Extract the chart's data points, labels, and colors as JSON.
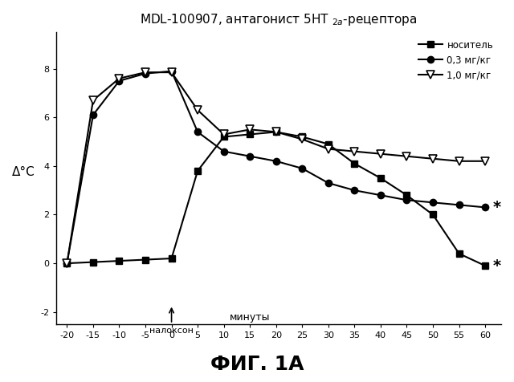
{
  "title": "MDL-100907, антагонист 5НТ $_{2a}$-рецептора",
  "ylabel": "Δ°С",
  "xlabel_minutes": "минуты",
  "xlabel_naloxon": "налоксон",
  "fig_label": "ФИГ. 1А",
  "xlim": [
    -22,
    63
  ],
  "ylim": [
    -2.5,
    9.5
  ],
  "xticks": [
    -20,
    -15,
    -10,
    -5,
    0,
    5,
    10,
    15,
    20,
    25,
    30,
    35,
    40,
    45,
    50,
    55,
    60
  ],
  "yticks": [
    -2,
    0,
    2,
    4,
    6,
    8
  ],
  "series": {
    "vehicle": {
      "label": "носитель",
      "color": "black",
      "marker": "s",
      "markersize": 6,
      "linewidth": 1.5,
      "x": [
        -20,
        -15,
        -10,
        -5,
        0,
        5,
        10,
        15,
        20,
        25,
        30,
        35,
        40,
        45,
        50,
        55,
        60
      ],
      "y": [
        0.0,
        0.05,
        0.1,
        0.15,
        0.2,
        3.8,
        5.2,
        5.3,
        5.4,
        5.2,
        4.9,
        4.1,
        3.5,
        2.8,
        2.0,
        0.4,
        -0.1
      ]
    },
    "dose_03": {
      "label": "0,3 мг/кг",
      "color": "black",
      "marker": "o",
      "markersize": 6,
      "linewidth": 1.5,
      "x": [
        -20,
        -15,
        -10,
        -5,
        0,
        5,
        10,
        15,
        20,
        25,
        30,
        35,
        40,
        45,
        50,
        55,
        60
      ],
      "y": [
        0.0,
        6.1,
        7.5,
        7.8,
        7.9,
        5.4,
        4.6,
        4.4,
        4.2,
        3.9,
        3.3,
        3.0,
        2.8,
        2.6,
        2.5,
        2.4,
        2.3
      ]
    },
    "dose_10": {
      "label": "1,0 мг/кг",
      "color": "black",
      "marker": "v",
      "markersize": 7,
      "linewidth": 1.5,
      "x": [
        -20,
        -15,
        -10,
        -5,
        0,
        5,
        10,
        15,
        20,
        25,
        30,
        35,
        40,
        45,
        50,
        55,
        60
      ],
      "y": [
        0.0,
        6.7,
        7.6,
        7.85,
        7.85,
        6.3,
        5.3,
        5.5,
        5.4,
        5.1,
        4.7,
        4.6,
        4.5,
        4.4,
        4.3,
        4.2,
        4.2
      ]
    }
  },
  "star_y_vehicle": -0.1,
  "star_y_dose03": 2.3,
  "star_x": 61.5
}
